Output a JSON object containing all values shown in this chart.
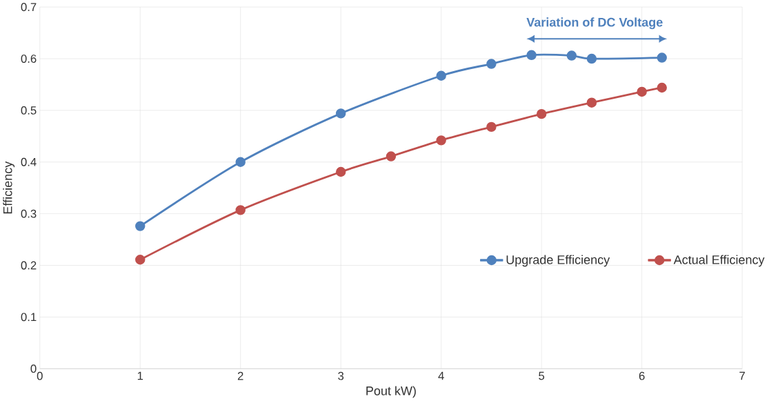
{
  "chart_data": {
    "type": "line",
    "xlabel": "Pout kW)",
    "ylabel": "Efficiency",
    "xlim": [
      0,
      7
    ],
    "xticks": [
      0,
      1,
      2,
      3,
      4,
      5,
      6,
      7
    ],
    "ylim": [
      0,
      0.7
    ],
    "yticks": [
      0,
      0.1,
      0.2,
      0.3,
      0.4,
      0.5,
      0.6,
      0.7
    ],
    "grid": true,
    "legend": "right",
    "marker": "circle",
    "line_style": "solid",
    "series": [
      {
        "name": "Upgrade Efficiency",
        "color": "#4f81bd",
        "x": [
          1,
          2,
          3,
          4,
          4.5,
          4.9,
          5.3,
          5.5,
          6.2
        ],
        "values": [
          0.276,
          0.4,
          0.494,
          0.567,
          0.59,
          0.607,
          0.606,
          0.6,
          0.602
        ]
      },
      {
        "name": "Actual Efficiency",
        "color": "#c0504d",
        "x": [
          1,
          2,
          3,
          3.5,
          4,
          4.5,
          5,
          5.5,
          6,
          6.2
        ],
        "values": [
          0.211,
          0.307,
          0.381,
          0.411,
          0.442,
          0.468,
          0.493,
          0.515,
          0.536,
          0.544
        ]
      }
    ],
    "annotations": [
      "**Variation of DC Voltage**"
    ]
  }
}
